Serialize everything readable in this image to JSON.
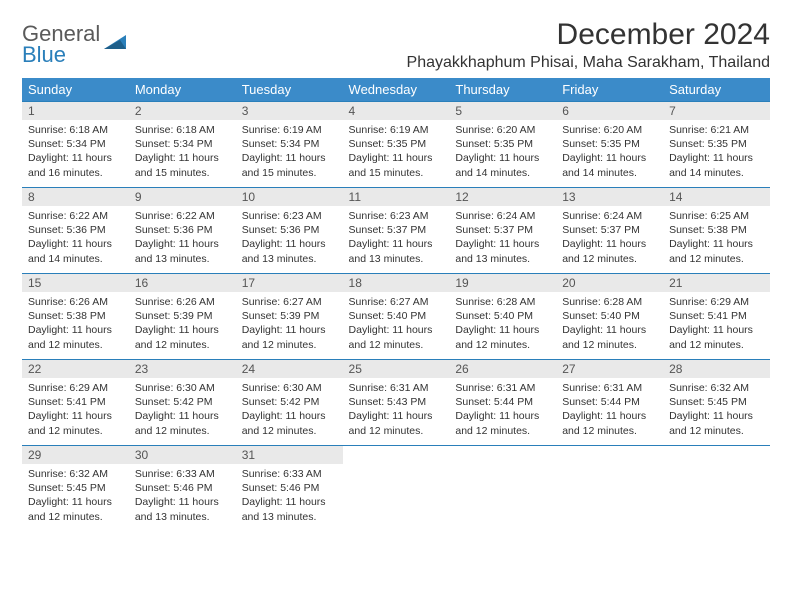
{
  "brand": {
    "part1": "General",
    "part2": "Blue"
  },
  "title": "December 2024",
  "location": "Phayakkhaphum Phisai, Maha Sarakham, Thailand",
  "colors": {
    "header_bg": "#3b8bc9",
    "row_divider": "#2a7fba",
    "daynum_bg": "#e9e9e9",
    "text": "#333333"
  },
  "weekdays": [
    "Sunday",
    "Monday",
    "Tuesday",
    "Wednesday",
    "Thursday",
    "Friday",
    "Saturday"
  ],
  "days": [
    {
      "n": 1,
      "sr": "6:18 AM",
      "ss": "5:34 PM",
      "dl": "11 hours and 16 minutes."
    },
    {
      "n": 2,
      "sr": "6:18 AM",
      "ss": "5:34 PM",
      "dl": "11 hours and 15 minutes."
    },
    {
      "n": 3,
      "sr": "6:19 AM",
      "ss": "5:34 PM",
      "dl": "11 hours and 15 minutes."
    },
    {
      "n": 4,
      "sr": "6:19 AM",
      "ss": "5:35 PM",
      "dl": "11 hours and 15 minutes."
    },
    {
      "n": 5,
      "sr": "6:20 AM",
      "ss": "5:35 PM",
      "dl": "11 hours and 14 minutes."
    },
    {
      "n": 6,
      "sr": "6:20 AM",
      "ss": "5:35 PM",
      "dl": "11 hours and 14 minutes."
    },
    {
      "n": 7,
      "sr": "6:21 AM",
      "ss": "5:35 PM",
      "dl": "11 hours and 14 minutes."
    },
    {
      "n": 8,
      "sr": "6:22 AM",
      "ss": "5:36 PM",
      "dl": "11 hours and 14 minutes."
    },
    {
      "n": 9,
      "sr": "6:22 AM",
      "ss": "5:36 PM",
      "dl": "11 hours and 13 minutes."
    },
    {
      "n": 10,
      "sr": "6:23 AM",
      "ss": "5:36 PM",
      "dl": "11 hours and 13 minutes."
    },
    {
      "n": 11,
      "sr": "6:23 AM",
      "ss": "5:37 PM",
      "dl": "11 hours and 13 minutes."
    },
    {
      "n": 12,
      "sr": "6:24 AM",
      "ss": "5:37 PM",
      "dl": "11 hours and 13 minutes."
    },
    {
      "n": 13,
      "sr": "6:24 AM",
      "ss": "5:37 PM",
      "dl": "11 hours and 12 minutes."
    },
    {
      "n": 14,
      "sr": "6:25 AM",
      "ss": "5:38 PM",
      "dl": "11 hours and 12 minutes."
    },
    {
      "n": 15,
      "sr": "6:26 AM",
      "ss": "5:38 PM",
      "dl": "11 hours and 12 minutes."
    },
    {
      "n": 16,
      "sr": "6:26 AM",
      "ss": "5:39 PM",
      "dl": "11 hours and 12 minutes."
    },
    {
      "n": 17,
      "sr": "6:27 AM",
      "ss": "5:39 PM",
      "dl": "11 hours and 12 minutes."
    },
    {
      "n": 18,
      "sr": "6:27 AM",
      "ss": "5:40 PM",
      "dl": "11 hours and 12 minutes."
    },
    {
      "n": 19,
      "sr": "6:28 AM",
      "ss": "5:40 PM",
      "dl": "11 hours and 12 minutes."
    },
    {
      "n": 20,
      "sr": "6:28 AM",
      "ss": "5:40 PM",
      "dl": "11 hours and 12 minutes."
    },
    {
      "n": 21,
      "sr": "6:29 AM",
      "ss": "5:41 PM",
      "dl": "11 hours and 12 minutes."
    },
    {
      "n": 22,
      "sr": "6:29 AM",
      "ss": "5:41 PM",
      "dl": "11 hours and 12 minutes."
    },
    {
      "n": 23,
      "sr": "6:30 AM",
      "ss": "5:42 PM",
      "dl": "11 hours and 12 minutes."
    },
    {
      "n": 24,
      "sr": "6:30 AM",
      "ss": "5:42 PM",
      "dl": "11 hours and 12 minutes."
    },
    {
      "n": 25,
      "sr": "6:31 AM",
      "ss": "5:43 PM",
      "dl": "11 hours and 12 minutes."
    },
    {
      "n": 26,
      "sr": "6:31 AM",
      "ss": "5:44 PM",
      "dl": "11 hours and 12 minutes."
    },
    {
      "n": 27,
      "sr": "6:31 AM",
      "ss": "5:44 PM",
      "dl": "11 hours and 12 minutes."
    },
    {
      "n": 28,
      "sr": "6:32 AM",
      "ss": "5:45 PM",
      "dl": "11 hours and 12 minutes."
    },
    {
      "n": 29,
      "sr": "6:32 AM",
      "ss": "5:45 PM",
      "dl": "11 hours and 12 minutes."
    },
    {
      "n": 30,
      "sr": "6:33 AM",
      "ss": "5:46 PM",
      "dl": "11 hours and 13 minutes."
    },
    {
      "n": 31,
      "sr": "6:33 AM",
      "ss": "5:46 PM",
      "dl": "11 hours and 13 minutes."
    }
  ],
  "labels": {
    "sunrise": "Sunrise:",
    "sunset": "Sunset:",
    "daylight": "Daylight:"
  }
}
